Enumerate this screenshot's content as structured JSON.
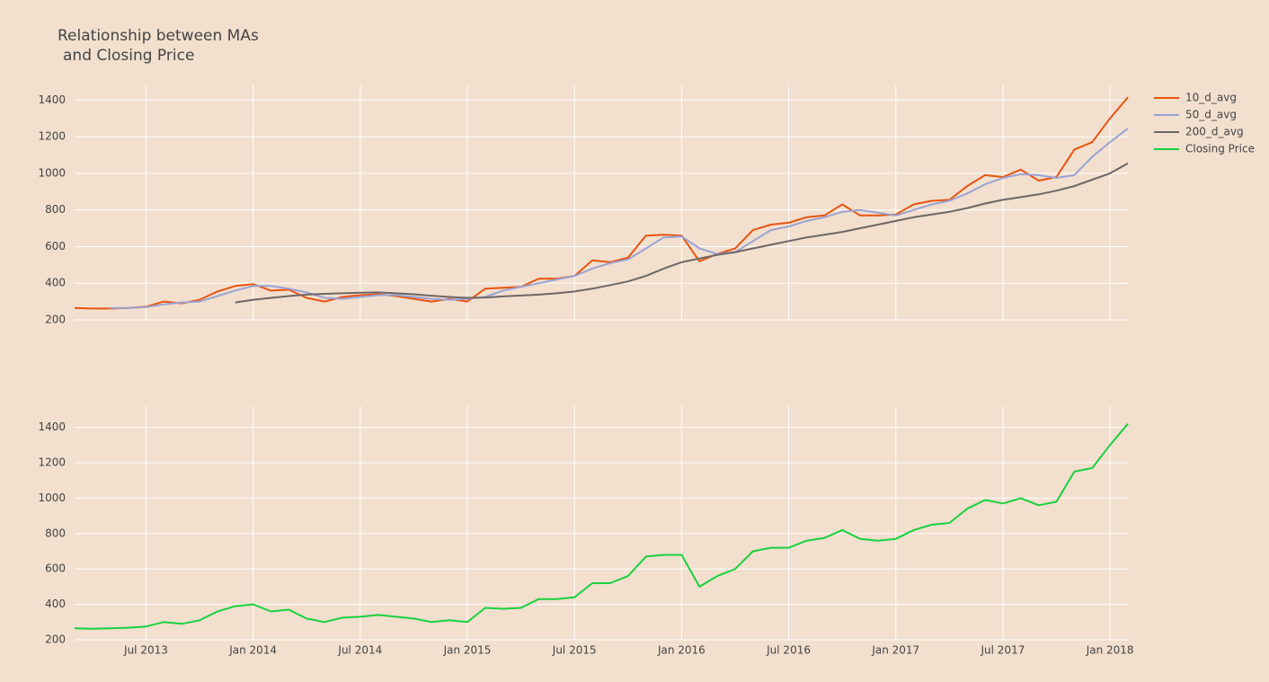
{
  "title": [
    "Relationship between MAs",
    "and Closing Price"
  ],
  "legend": "top-right",
  "chart_data": [
    {
      "type": "line",
      "x": [
        "2013-03",
        "2013-04",
        "2013-05",
        "2013-06",
        "2013-07",
        "2013-08",
        "2013-09",
        "2013-10",
        "2013-11",
        "2013-12",
        "2014-01",
        "2014-02",
        "2014-03",
        "2014-04",
        "2014-05",
        "2014-06",
        "2014-07",
        "2014-08",
        "2014-09",
        "2014-10",
        "2014-11",
        "2014-12",
        "2015-01",
        "2015-02",
        "2015-03",
        "2015-04",
        "2015-05",
        "2015-06",
        "2015-07",
        "2015-08",
        "2015-09",
        "2015-10",
        "2015-11",
        "2015-12",
        "2016-01",
        "2016-02",
        "2016-03",
        "2016-04",
        "2016-05",
        "2016-06",
        "2016-07",
        "2016-08",
        "2016-09",
        "2016-10",
        "2016-11",
        "2016-12",
        "2017-01",
        "2017-02",
        "2017-03",
        "2017-04",
        "2017-05",
        "2017-06",
        "2017-07",
        "2017-08",
        "2017-09",
        "2017-10",
        "2017-11",
        "2017-12",
        "2018-01",
        "2018-02"
      ],
      "series": [
        {
          "name": "10_d_avg",
          "color": "#e8540f",
          "width": 2,
          "values": [
            265,
            262,
            262,
            265,
            272,
            300,
            290,
            310,
            355,
            385,
            395,
            360,
            365,
            320,
            300,
            325,
            335,
            340,
            330,
            315,
            300,
            315,
            300,
            370,
            375,
            380,
            425,
            425,
            440,
            525,
            515,
            540,
            660,
            665,
            660,
            520,
            560,
            590,
            690,
            720,
            730,
            760,
            770,
            830,
            770,
            770,
            775,
            830,
            850,
            855,
            930,
            990,
            980,
            1020,
            960,
            980,
            1130,
            1170,
            1300,
            1415
          ]
        },
        {
          "name": "50_d_avg",
          "color": "#9aa3d4",
          "width": 2,
          "values": [
            null,
            null,
            265,
            265,
            270,
            285,
            295,
            300,
            330,
            360,
            385,
            385,
            370,
            350,
            320,
            315,
            325,
            335,
            335,
            325,
            315,
            310,
            315,
            325,
            360,
            380,
            400,
            420,
            440,
            480,
            510,
            530,
            590,
            650,
            655,
            590,
            560,
            570,
            630,
            690,
            710,
            740,
            760,
            790,
            800,
            785,
            770,
            800,
            830,
            850,
            890,
            940,
            975,
            995,
            990,
            975,
            990,
            1090,
            1170,
            1245
          ]
        },
        {
          "name": "200_d_avg",
          "color": "#6e6664",
          "width": 2,
          "values": [
            null,
            null,
            null,
            null,
            null,
            null,
            null,
            null,
            null,
            295,
            310,
            320,
            330,
            338,
            342,
            345,
            348,
            350,
            345,
            340,
            332,
            325,
            320,
            322,
            328,
            333,
            338,
            345,
            355,
            370,
            390,
            410,
            440,
            480,
            515,
            535,
            555,
            570,
            590,
            610,
            630,
            650,
            665,
            680,
            700,
            720,
            740,
            760,
            775,
            790,
            810,
            835,
            855,
            870,
            885,
            905,
            930,
            965,
            1000,
            1055
          ]
        }
      ],
      "xlim": [
        "2013-03",
        "2018-02"
      ],
      "xticks": [
        "2013-07",
        "2014-01",
        "2014-07",
        "2015-01",
        "2015-07",
        "2016-01",
        "2016-07",
        "2017-01",
        "2017-07",
        "2018-01"
      ],
      "ylim": [
        200,
        1480
      ],
      "yticks": [
        200,
        400,
        600,
        800,
        1000,
        1200,
        1400
      ],
      "grid": true
    },
    {
      "type": "line",
      "x": [
        "2013-03",
        "2013-04",
        "2013-05",
        "2013-06",
        "2013-07",
        "2013-08",
        "2013-09",
        "2013-10",
        "2013-11",
        "2013-12",
        "2014-01",
        "2014-02",
        "2014-03",
        "2014-04",
        "2014-05",
        "2014-06",
        "2014-07",
        "2014-08",
        "2014-09",
        "2014-10",
        "2014-11",
        "2014-12",
        "2015-01",
        "2015-02",
        "2015-03",
        "2015-04",
        "2015-05",
        "2015-06",
        "2015-07",
        "2015-08",
        "2015-09",
        "2015-10",
        "2015-11",
        "2015-12",
        "2016-01",
        "2016-02",
        "2016-03",
        "2016-04",
        "2016-05",
        "2016-06",
        "2016-07",
        "2016-08",
        "2016-09",
        "2016-10",
        "2016-11",
        "2016-12",
        "2017-01",
        "2017-02",
        "2017-03",
        "2017-04",
        "2017-05",
        "2017-06",
        "2017-07",
        "2017-08",
        "2017-09",
        "2017-10",
        "2017-11",
        "2017-12",
        "2018-01",
        "2018-02"
      ],
      "series": [
        {
          "name": "Closing Price",
          "color": "#19d13f",
          "width": 2,
          "values": [
            265,
            262,
            265,
            268,
            275,
            300,
            290,
            310,
            360,
            390,
            400,
            360,
            370,
            320,
            300,
            325,
            330,
            340,
            330,
            320,
            300,
            310,
            300,
            380,
            375,
            380,
            430,
            430,
            440,
            520,
            520,
            560,
            670,
            680,
            680,
            500,
            560,
            600,
            700,
            720,
            720,
            760,
            775,
            820,
            770,
            760,
            770,
            820,
            850,
            860,
            940,
            990,
            970,
            1000,
            960,
            980,
            1150,
            1170,
            1300,
            1420
          ]
        }
      ],
      "xlim": [
        "2013-03",
        "2018-02"
      ],
      "xticks": [
        {
          "value": "2013-07",
          "label": "Jul 2013"
        },
        {
          "value": "2014-01",
          "label": "Jan 2014"
        },
        {
          "value": "2014-07",
          "label": "Jul 2014"
        },
        {
          "value": "2015-01",
          "label": "Jan 2015"
        },
        {
          "value": "2015-07",
          "label": "Jul 2015"
        },
        {
          "value": "2016-01",
          "label": "Jan 2016"
        },
        {
          "value": "2016-07",
          "label": "Jul 2016"
        },
        {
          "value": "2017-01",
          "label": "Jan 2017"
        },
        {
          "value": "2017-07",
          "label": "Jul 2017"
        },
        {
          "value": "2018-01",
          "label": "Jan 2018"
        }
      ],
      "ylim": [
        200,
        1520
      ],
      "yticks": [
        200,
        400,
        600,
        800,
        1000,
        1200,
        1400
      ],
      "grid": true
    }
  ]
}
